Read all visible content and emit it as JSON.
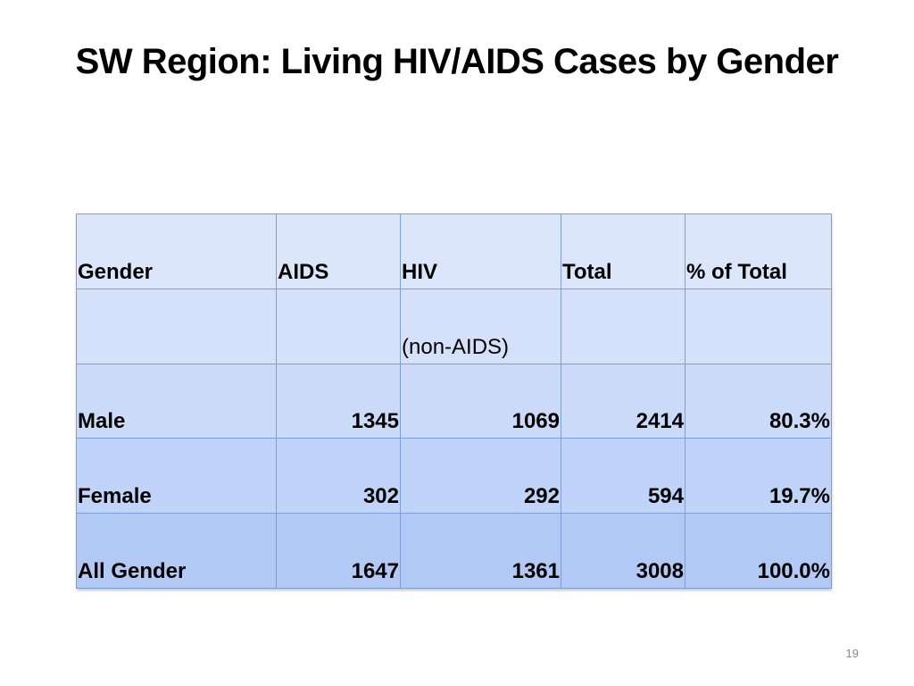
{
  "slide": {
    "title": "SW Region: Living HIV/AIDS Cases by Gender",
    "number": "19"
  },
  "table": {
    "header": [
      "Gender",
      "AIDS",
      "HIV",
      "Total",
      "% of Total"
    ],
    "subheader": [
      "",
      "",
      "(non-AIDS)",
      "",
      ""
    ],
    "rows": [
      [
        "Male",
        "1345",
        "1069",
        "2414",
        "80.3%"
      ],
      [
        "Female",
        "302",
        "292",
        "594",
        "19.7%"
      ],
      [
        "All Gender",
        "1647",
        "1361",
        "3008",
        "100.0%"
      ]
    ]
  },
  "colors": {
    "cell_border": "#7f9ed6",
    "row_fill_top": "#dbe6fb",
    "row_fill_bottom": "#b2c9f6"
  }
}
